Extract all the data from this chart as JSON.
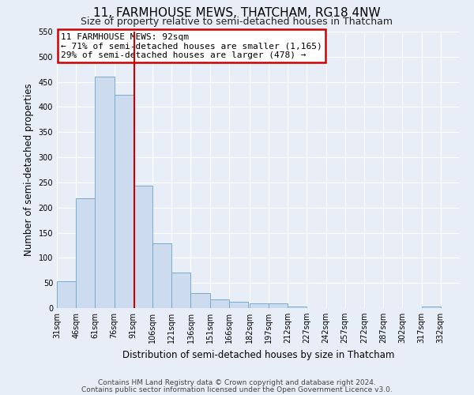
{
  "title": "11, FARMHOUSE MEWS, THATCHAM, RG18 4NW",
  "subtitle": "Size of property relative to semi-detached houses in Thatcham",
  "xlabel": "Distribution of semi-detached houses by size in Thatcham",
  "ylabel": "Number of semi-detached properties",
  "bar_left_edges": [
    31,
    46,
    61,
    76,
    91,
    106,
    121,
    136,
    151,
    166,
    182,
    197,
    212,
    227,
    242,
    257,
    272,
    287,
    302,
    317
  ],
  "bar_heights": [
    53,
    218,
    460,
    425,
    243,
    129,
    70,
    30,
    17,
    12,
    9,
    10,
    3,
    0,
    0,
    0,
    0,
    0,
    0,
    3
  ],
  "bin_width": 15,
  "bar_color": "#ccdcee",
  "bar_edge_color": "#7aaacb",
  "property_line_x": 92,
  "ylim": [
    0,
    550
  ],
  "yticks": [
    0,
    50,
    100,
    150,
    200,
    250,
    300,
    350,
    400,
    450,
    500,
    550
  ],
  "xtick_labels": [
    "31sqm",
    "46sqm",
    "61sqm",
    "76sqm",
    "91sqm",
    "106sqm",
    "121sqm",
    "136sqm",
    "151sqm",
    "166sqm",
    "182sqm",
    "197sqm",
    "212sqm",
    "227sqm",
    "242sqm",
    "257sqm",
    "272sqm",
    "287sqm",
    "302sqm",
    "317sqm",
    "332sqm"
  ],
  "annotation_title": "11 FARMHOUSE MEWS: 92sqm",
  "annotation_line1": "← 71% of semi-detached houses are smaller (1,165)",
  "annotation_line2": "29% of semi-detached houses are larger (478) →",
  "annotation_box_color": "#ffffff",
  "annotation_box_edge": "#cc0000",
  "footer1": "Contains HM Land Registry data © Crown copyright and database right 2024.",
  "footer2": "Contains public sector information licensed under the Open Government Licence v3.0.",
  "bg_color": "#e8eef8",
  "grid_color": "#ffffff",
  "title_fontsize": 11,
  "subtitle_fontsize": 9,
  "axis_label_fontsize": 8.5,
  "tick_fontsize": 7,
  "annotation_fontsize": 8,
  "footer_fontsize": 6.5,
  "xlim_left": 31,
  "xlim_right": 347
}
